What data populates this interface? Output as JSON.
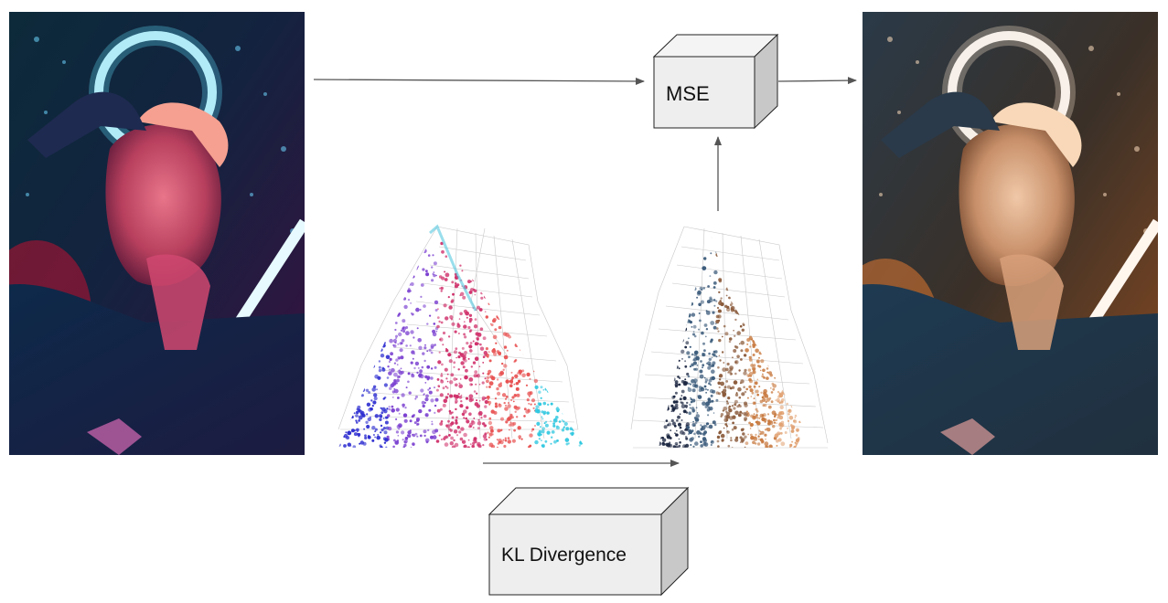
{
  "diagram": {
    "boxes": {
      "mse": {
        "label": "MSE"
      },
      "kl": {
        "label": "KL Divergence"
      }
    },
    "images": {
      "input": {
        "semantic": "portrait-photo-neon-input"
      },
      "output": {
        "semantic": "portrait-photo-graded-output"
      }
    },
    "clouds": {
      "source": {
        "semantic": "3d-color-point-cloud-source",
        "palette": [
          "#2a2ad0",
          "#7a3fd0",
          "#d0306a",
          "#e85050",
          "#30c8e0"
        ]
      },
      "target": {
        "semantic": "3d-color-point-cloud-target",
        "palette": [
          "#1a2540",
          "#3a5a7a",
          "#8a5a3a",
          "#c87a40",
          "#e0a070"
        ]
      }
    },
    "colors": {
      "arrow": "#555555",
      "box_fill": "#eeeeee",
      "box_stroke": "#222222"
    }
  }
}
